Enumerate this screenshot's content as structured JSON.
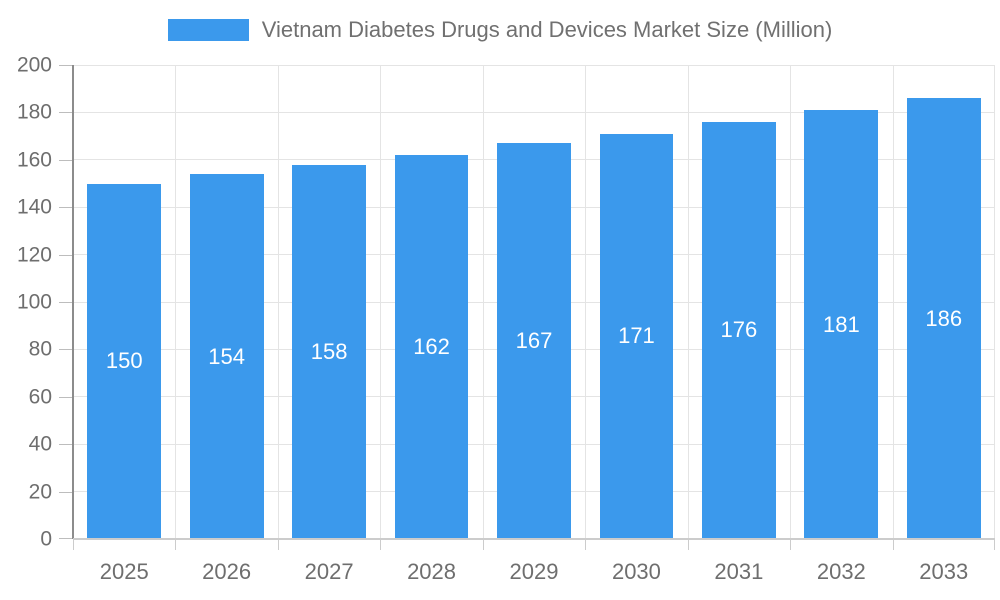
{
  "chart_data": {
    "type": "bar",
    "title": "Vietnam Diabetes Drugs and Devices Market Size (Million)",
    "categories": [
      "2025",
      "2026",
      "2027",
      "2028",
      "2029",
      "2030",
      "2031",
      "2032",
      "2033"
    ],
    "values": [
      150,
      154,
      158,
      162,
      167,
      171,
      176,
      181,
      186
    ],
    "xlabel": "",
    "ylabel": "",
    "ylim": [
      0,
      200
    ],
    "ytick_step": 20,
    "yticks": [
      0,
      20,
      40,
      60,
      80,
      100,
      120,
      140,
      160,
      180,
      200
    ],
    "grid": true,
    "legend_position": "top-center",
    "value_labels": "inside-center",
    "bar_width_ratio": 0.72
  },
  "colors": {
    "bar_fill": "#3B99EC",
    "bar_value_text": "#FFFFFF",
    "grid_line": "#E4E4E4",
    "y_axis_line": "#8C8C8C",
    "x_axis_line": "#CCCCCC",
    "tick_mark": "#BDBDBD",
    "axis_text": "#6E6E6E",
    "legend_text": "#707070",
    "background": "#FFFFFF"
  }
}
